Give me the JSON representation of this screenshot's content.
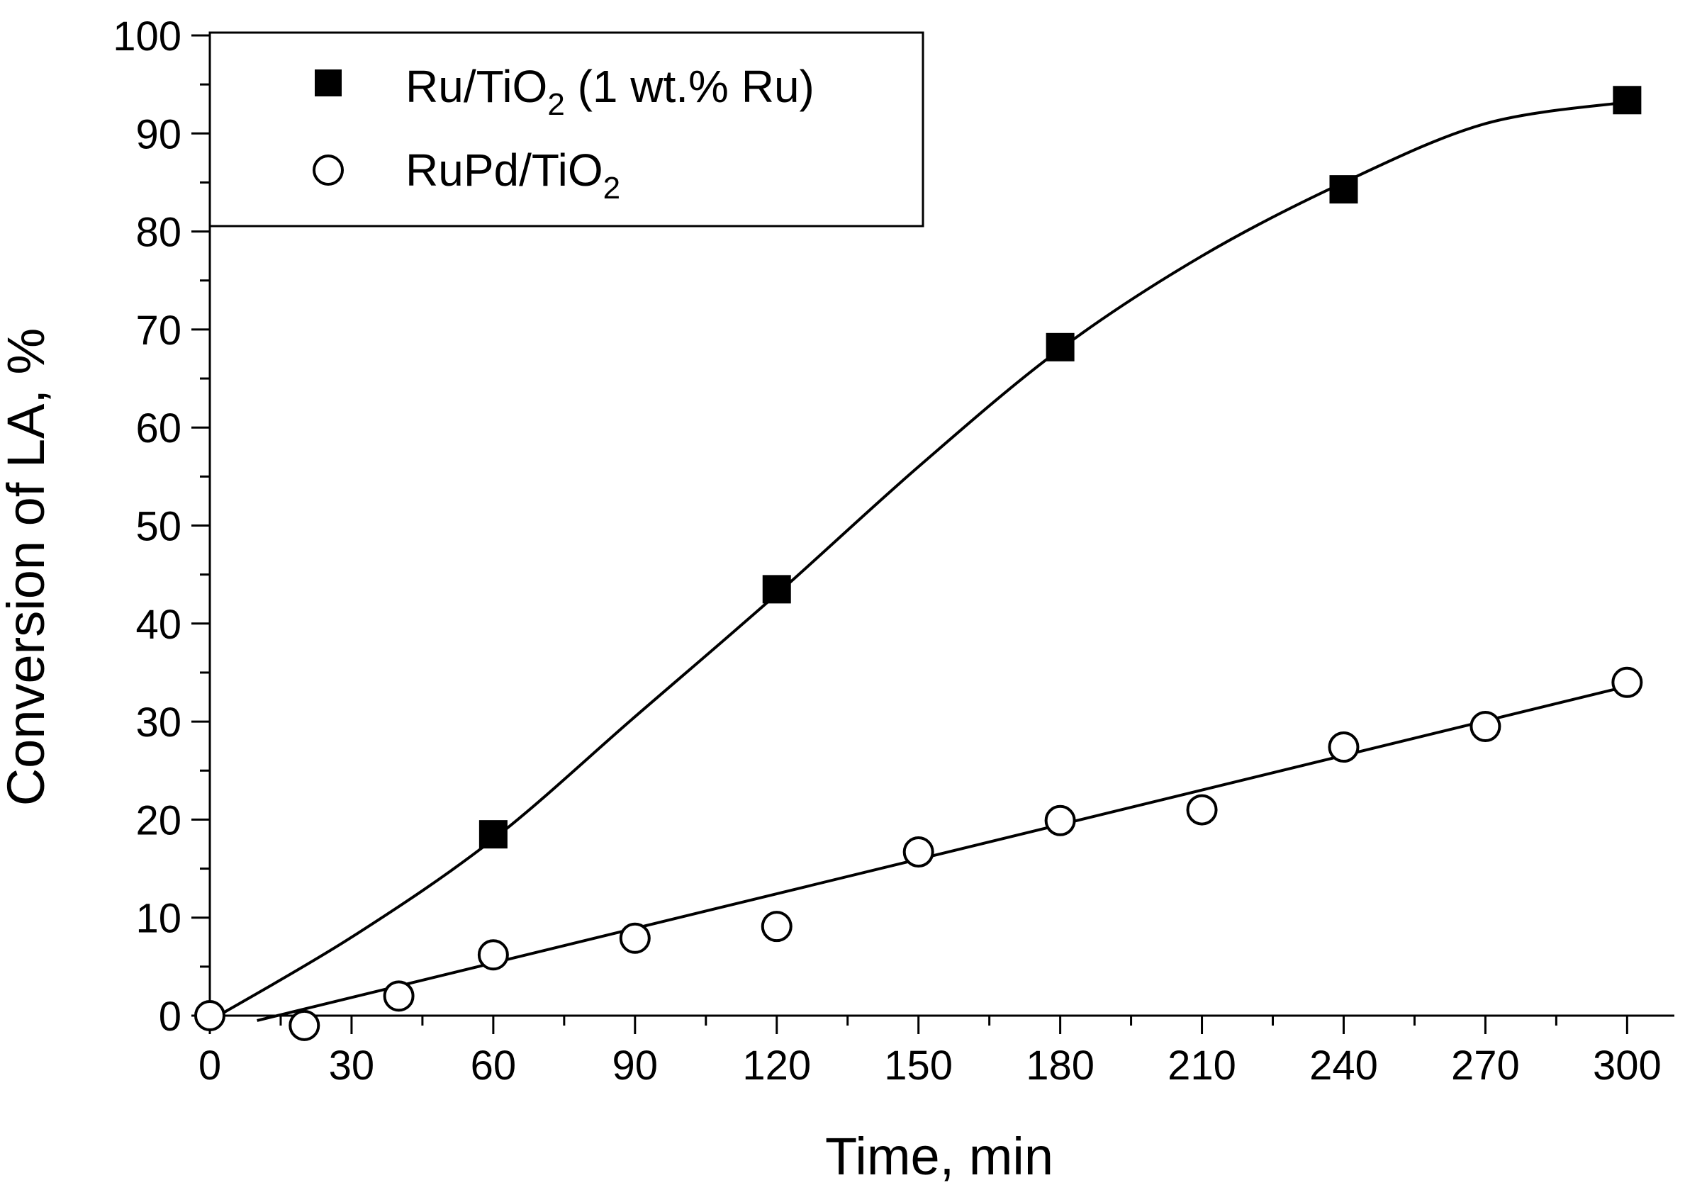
{
  "chart_data": {
    "type": "scatter",
    "xlabel": "Time, min",
    "ylabel": "Conversion of LA, %",
    "xlim": [
      0,
      310
    ],
    "ylim": [
      0,
      100
    ],
    "x_ticks": [
      0,
      30,
      60,
      90,
      120,
      150,
      180,
      210,
      240,
      270,
      300
    ],
    "y_ticks": [
      0,
      10,
      20,
      30,
      40,
      50,
      60,
      70,
      80,
      90,
      100
    ],
    "x_tick_labels": [
      "0",
      "30",
      "60",
      "90",
      "120",
      "150",
      "180",
      "210",
      "240",
      "270",
      "300"
    ],
    "y_tick_labels": [
      "0",
      "10",
      "20",
      "30",
      "40",
      "50",
      "60",
      "70",
      "80",
      "90",
      "100"
    ],
    "legend_position": "top-left",
    "series": [
      {
        "name": "Ru/TiO2 (1 wt.% Ru)",
        "legend_base": "Ru/TiO",
        "legend_sub": "2",
        "legend_tail": " (1 wt.% Ru)",
        "marker": "filled-square",
        "color": "#000000",
        "x": [
          60,
          120,
          180,
          240,
          300
        ],
        "y": [
          18.5,
          43.5,
          68.2,
          84.3,
          93.4
        ],
        "fit_x": [
          0,
          30,
          60,
          90,
          120,
          150,
          180,
          210,
          240,
          270,
          300
        ],
        "fit_y": [
          -0.5,
          8,
          18,
          30.5,
          43,
          56,
          68,
          77.5,
          85,
          91,
          93.2
        ]
      },
      {
        "name": "RuPd/TiO2",
        "legend_base": "RuPd/TiO",
        "legend_sub": "2",
        "legend_tail": "",
        "marker": "open-circle",
        "color": "#000000",
        "x": [
          0,
          20,
          40,
          60,
          90,
          120,
          150,
          180,
          210,
          240,
          270,
          300
        ],
        "y": [
          0,
          -1,
          2,
          6.2,
          7.9,
          9.1,
          16.7,
          19.9,
          21,
          27.4,
          29.5,
          34
        ],
        "fit_x": [
          10,
          300
        ],
        "fit_y": [
          -0.5,
          33.6
        ]
      }
    ]
  }
}
